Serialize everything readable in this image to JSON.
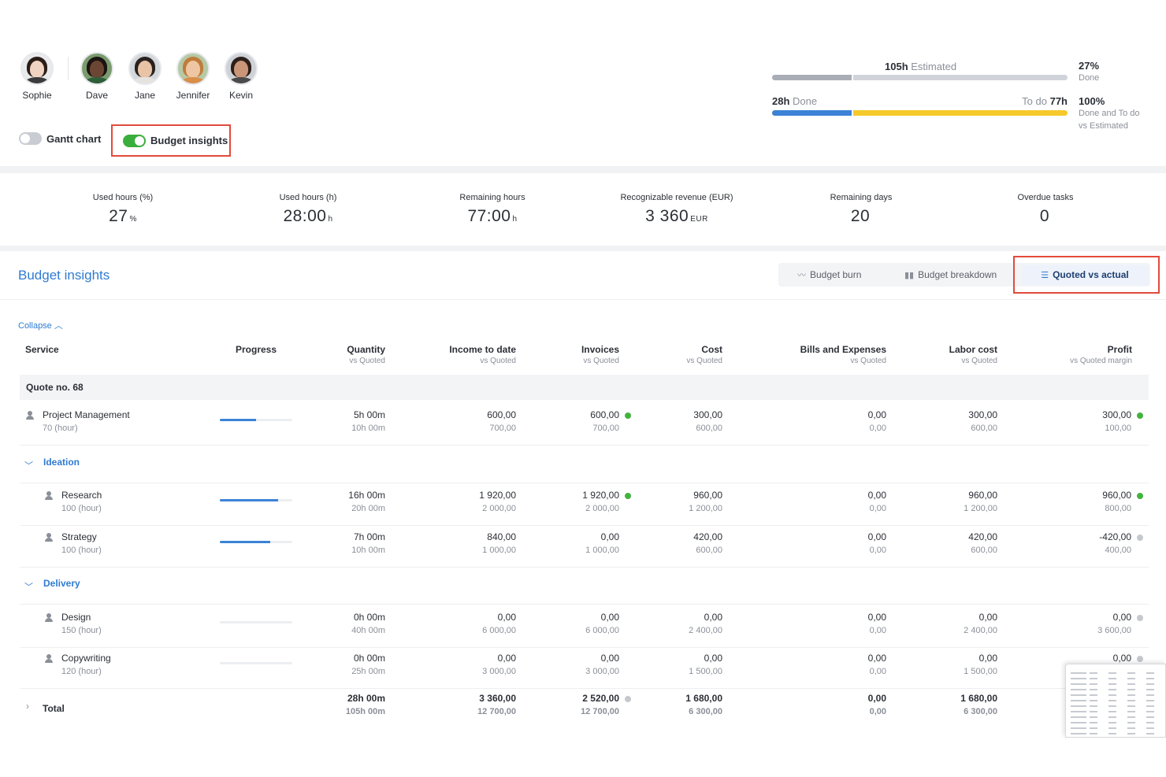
{
  "people": [
    {
      "name": "Sophie",
      "skin": "#f1d3c2",
      "hair": "#2b1d17",
      "shirt": "#3b3b3b",
      "bg": "#e9eaec"
    },
    {
      "name": "Dave",
      "skin": "#6b4632",
      "hair": "#1b1412",
      "shirt": "#2f5e3a",
      "bg": "#7a9b6e"
    },
    {
      "name": "Jane",
      "skin": "#e8c3a6",
      "hair": "#2a2220",
      "shirt": "#e6e3df",
      "bg": "#d4d8db"
    },
    {
      "name": "Jennifer",
      "skin": "#eec6a3",
      "hair": "#c07c3a",
      "shirt": "#d98e4a",
      "bg": "#b6c9a6"
    },
    {
      "name": "Kevin",
      "skin": "#c99678",
      "hair": "#2c1f1a",
      "shirt": "#4a4a4a",
      "bg": "#ced2d7"
    }
  ],
  "toggles": {
    "gantt": {
      "label": "Gantt chart",
      "on": false
    },
    "budget": {
      "label": "Budget insights",
      "on": true
    }
  },
  "estimate": {
    "estimated_value": "105h",
    "estimated_label": "Estimated",
    "done_value": "28h",
    "done_label": "Done",
    "todo_label": "To do",
    "todo_value": "77h",
    "done_fraction": 0.27,
    "pct1": "27%",
    "pct1_sub": "Done",
    "pct2": "100%",
    "pct2_sub1": "Done and To do",
    "pct2_sub2": "vs Estimated"
  },
  "kpis": [
    {
      "label": "Used hours (%)",
      "value": "27",
      "unit": "%"
    },
    {
      "label": "Used hours (h)",
      "value": "28:00",
      "unit": "h"
    },
    {
      "label": "Remaining hours",
      "value": "77:00",
      "unit": "h"
    },
    {
      "label": "Recognizable revenue (EUR)",
      "value": "3 360",
      "unit": "EUR"
    },
    {
      "label": "Remaining days",
      "value": "20",
      "unit": ""
    },
    {
      "label": "Overdue tasks",
      "value": "0",
      "unit": ""
    }
  ],
  "insights": {
    "title": "Budget insights",
    "tabs": {
      "burn": "Budget burn",
      "breakdown": "Budget breakdown",
      "quoted": "Quoted vs actual"
    },
    "collapse": "Collapse"
  },
  "table": {
    "headers": {
      "service": "Service",
      "progress": "Progress",
      "quantity": "Quantity",
      "quantity_sub": "vs Quoted",
      "income": "Income to date",
      "income_sub": "vs Quoted",
      "invoices": "Invoices",
      "invoices_sub": "vs Quoted",
      "cost": "Cost",
      "cost_sub": "vs Quoted",
      "bills": "Bills and Expenses",
      "bills_sub": "vs Quoted",
      "labor": "Labor cost",
      "labor_sub": "vs Quoted",
      "profit": "Profit",
      "profit_sub": "vs Quoted margin"
    },
    "quote_label": "Quote no. 68",
    "groups": {
      "ideation": "Ideation",
      "delivery": "Delivery"
    },
    "rows": [
      {
        "name": "Project Management",
        "unit": "70 (hour)",
        "progress": 0.5,
        "qty": "5h 00m",
        "qty_q": "10h 00m",
        "income": "600,00",
        "income_q": "700,00",
        "inv": "600,00",
        "inv_q": "700,00",
        "inv_dot": "green",
        "cost": "300,00",
        "cost_q": "600,00",
        "bills": "0,00",
        "bills_q": "0,00",
        "labor": "300,00",
        "labor_q": "600,00",
        "profit": "300,00",
        "profit_q": "100,00",
        "profit_dot": "green"
      },
      {
        "name": "Research",
        "unit": "100 (hour)",
        "progress": 0.8,
        "qty": "16h 00m",
        "qty_q": "20h 00m",
        "income": "1 920,00",
        "income_q": "2 000,00",
        "inv": "1 920,00",
        "inv_q": "2 000,00",
        "inv_dot": "green",
        "cost": "960,00",
        "cost_q": "1 200,00",
        "bills": "0,00",
        "bills_q": "0,00",
        "labor": "960,00",
        "labor_q": "1 200,00",
        "profit": "960,00",
        "profit_q": "800,00",
        "profit_dot": "green"
      },
      {
        "name": "Strategy",
        "unit": "100 (hour)",
        "progress": 0.7,
        "qty": "7h 00m",
        "qty_q": "10h 00m",
        "income": "840,00",
        "income_q": "1 000,00",
        "inv": "0,00",
        "inv_q": "1 000,00",
        "inv_dot": "",
        "cost": "420,00",
        "cost_q": "600,00",
        "bills": "0,00",
        "bills_q": "0,00",
        "labor": "420,00",
        "labor_q": "600,00",
        "profit": "-420,00",
        "profit_q": "400,00",
        "profit_dot": "grey"
      },
      {
        "name": "Design",
        "unit": "150 (hour)",
        "progress": 0,
        "qty": "0h 00m",
        "qty_q": "40h 00m",
        "income": "0,00",
        "income_q": "6 000,00",
        "inv": "0,00",
        "inv_q": "6 000,00",
        "inv_dot": "",
        "cost": "0,00",
        "cost_q": "2 400,00",
        "bills": "0,00",
        "bills_q": "0,00",
        "labor": "0,00",
        "labor_q": "2 400,00",
        "profit": "0,00",
        "profit_q": "3 600,00",
        "profit_dot": "grey"
      },
      {
        "name": "Copywriting",
        "unit": "120 (hour)",
        "progress": 0,
        "qty": "0h 00m",
        "qty_q": "25h 00m",
        "income": "0,00",
        "income_q": "3 000,00",
        "inv": "0,00",
        "inv_q": "3 000,00",
        "inv_dot": "",
        "cost": "0,00",
        "cost_q": "1 500,00",
        "bills": "0,00",
        "bills_q": "0,00",
        "labor": "0,00",
        "labor_q": "1 500,00",
        "profit": "0,00",
        "profit_q": "",
        "profit_dot": "grey"
      }
    ],
    "total": {
      "label": "Total",
      "qty": "28h 00m",
      "qty_q": "105h 00m",
      "income": "3 360,00",
      "income_q": "12 700,00",
      "inv": "2 520,00",
      "inv_q": "12 700,00",
      "inv_dot": "grey",
      "cost": "1 680,00",
      "cost_q": "6 300,00",
      "bills": "0,00",
      "bills_q": "0,00",
      "labor": "1 680,00",
      "labor_q": "6 300,00"
    }
  }
}
